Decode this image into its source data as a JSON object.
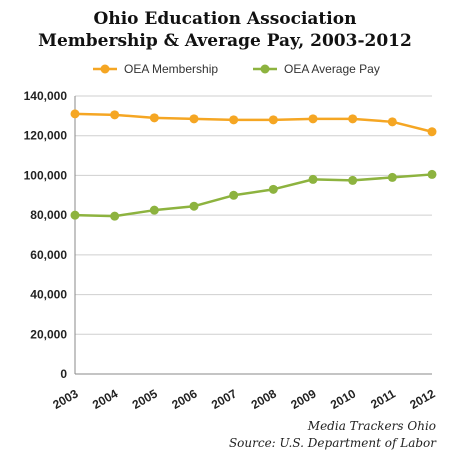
{
  "chart_data": {
    "type": "line",
    "title": "Ohio Education Association",
    "subtitle": "Membership & Average Pay, 2003-2012",
    "x": [
      "2003",
      "2004",
      "2005",
      "2006",
      "2007",
      "2008",
      "2009",
      "2010",
      "2011",
      "2012"
    ],
    "series": [
      {
        "name": "OEA Membership",
        "color": "#F5A623",
        "values": [
          131000,
          130500,
          129000,
          128500,
          128000,
          128000,
          128500,
          128500,
          127000,
          122000
        ]
      },
      {
        "name": "OEA Average Pay",
        "color": "#8DB33F",
        "values": [
          80000,
          79500,
          82500,
          84500,
          90000,
          93000,
          98000,
          97500,
          99000,
          100500
        ]
      }
    ],
    "ylim": [
      0,
      140000
    ],
    "yticks": [
      "0",
      "20,000",
      "40,000",
      "60,000",
      "80,000",
      "100,000",
      "120,000",
      "140,000"
    ],
    "grid": true,
    "legend": "top"
  },
  "credits": {
    "line1": "Media Trackers Ohio",
    "line2": "Source: U.S. Department of Labor"
  }
}
